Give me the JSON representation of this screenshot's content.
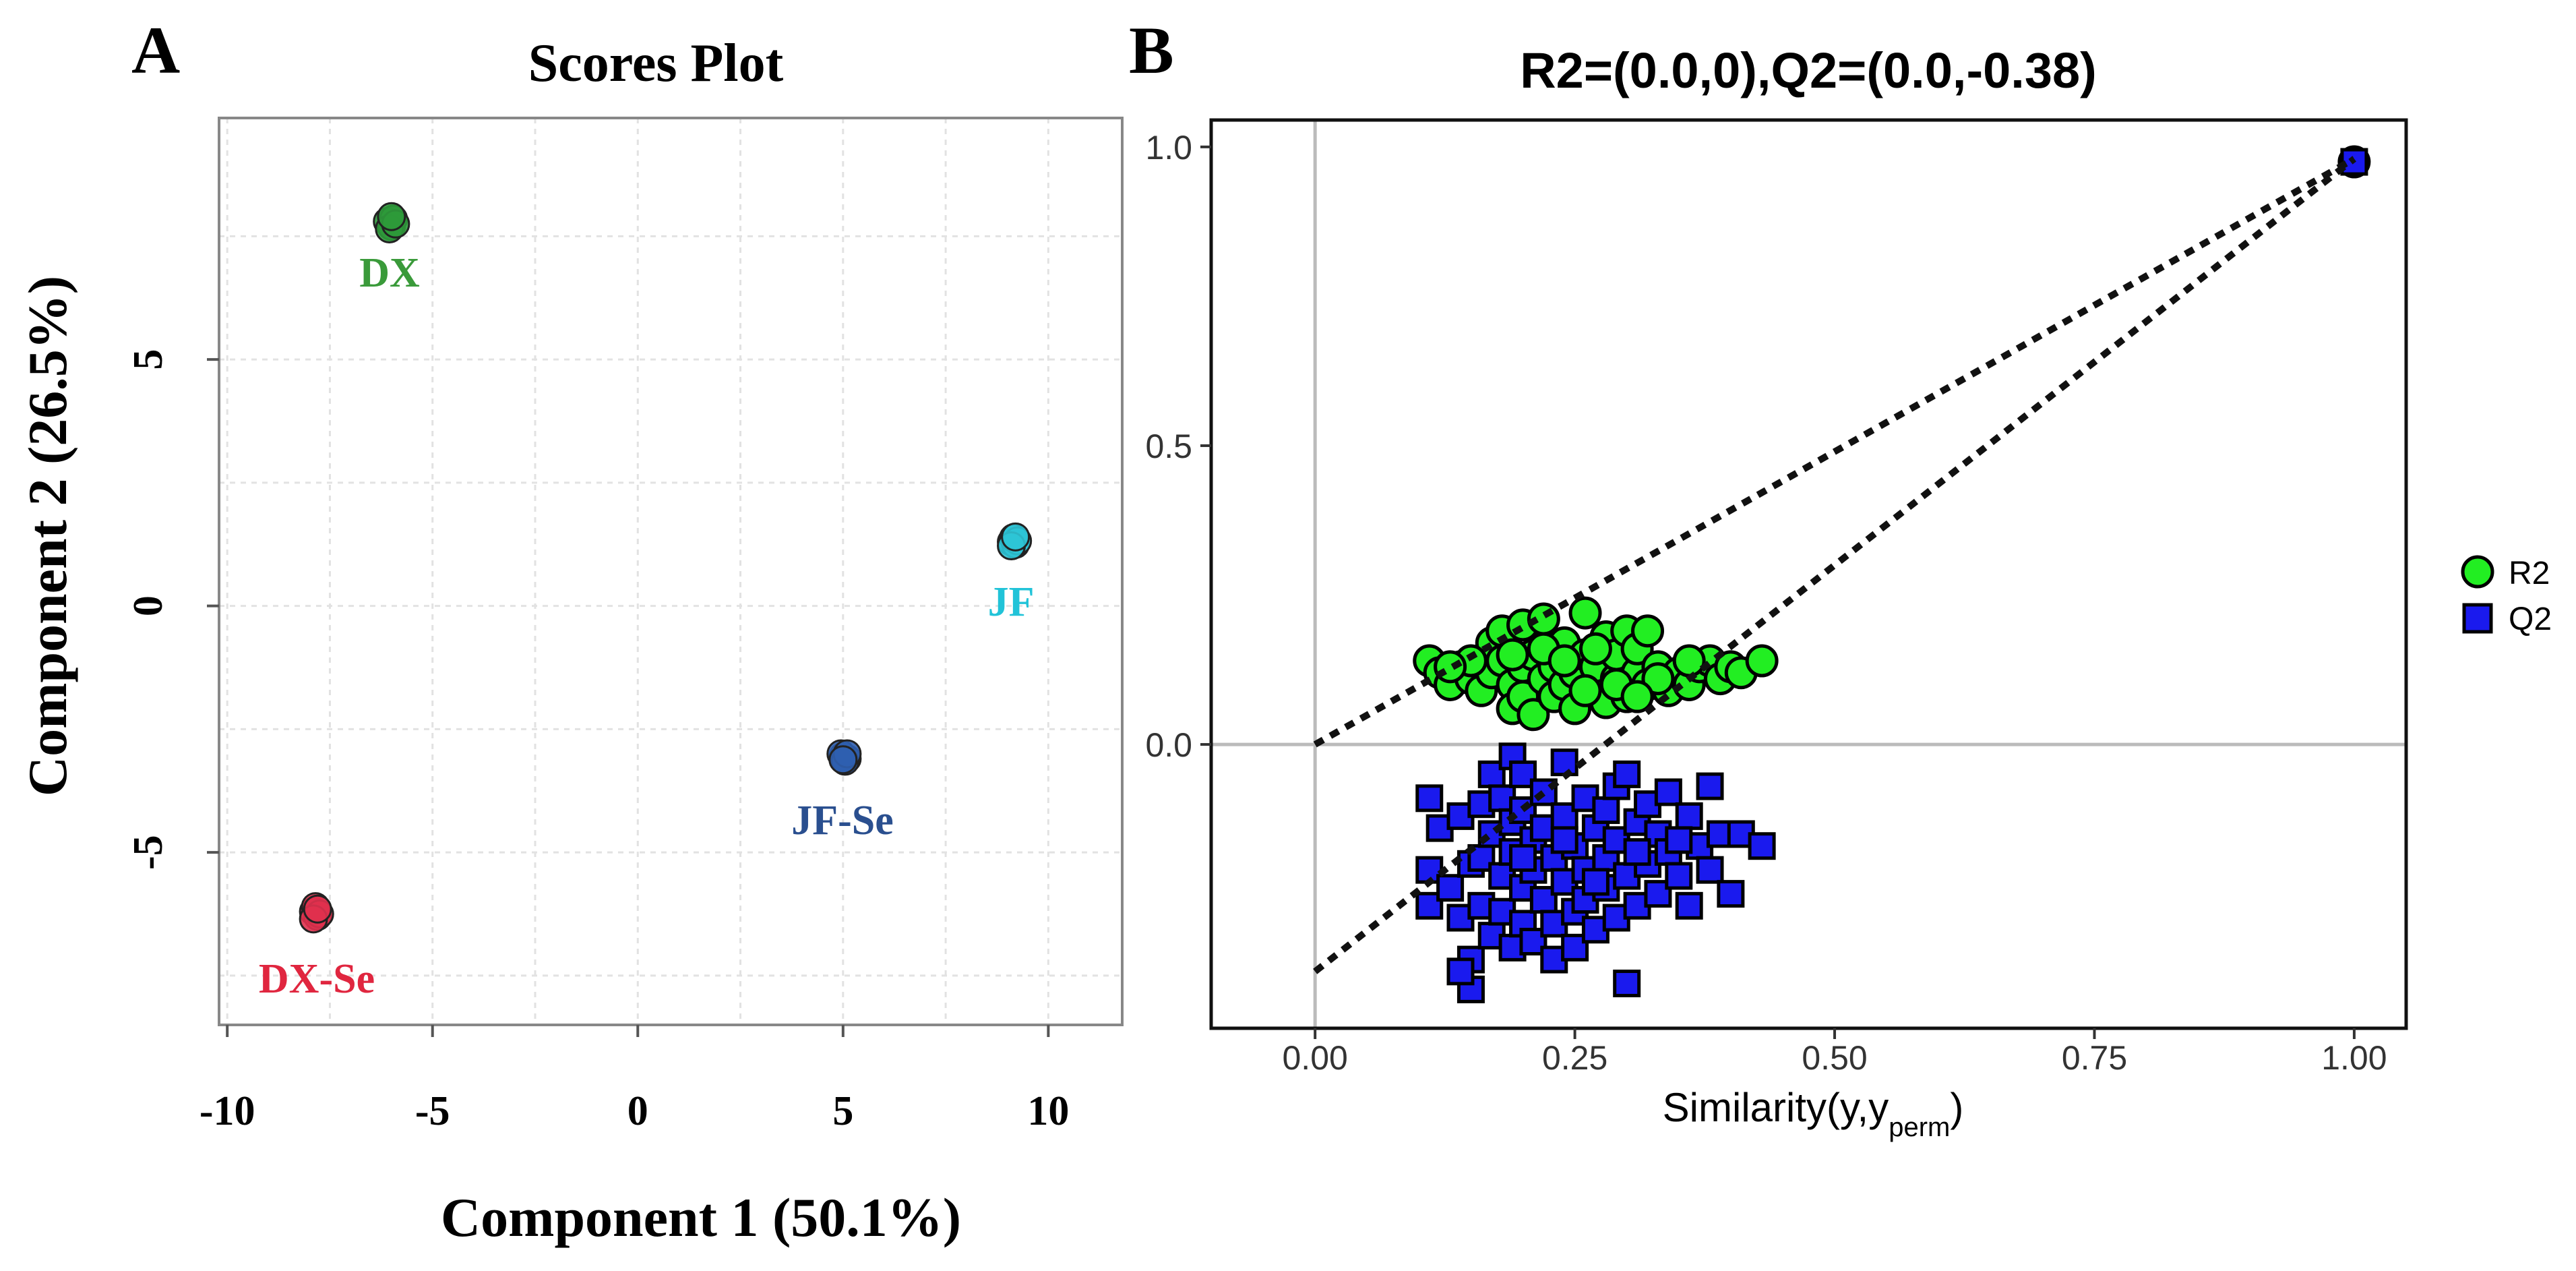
{
  "chart_data": [
    {
      "panel_label": "A",
      "type": "scatter",
      "title": "Scores Plot",
      "xlabel": "Component 1 (50.1%)",
      "ylabel": "Component 2 (26.5%)",
      "xlim": [
        -10.2,
        11.8
      ],
      "ylim": [
        -8.5,
        9.9
      ],
      "xticks": [
        -10,
        -5,
        0,
        5,
        10
      ],
      "xtick_labels": [
        "-10",
        "-5",
        "0",
        "5",
        "10"
      ],
      "yticks": [
        -5,
        0,
        5
      ],
      "ytick_labels": [
        "-5",
        "0",
        "5"
      ],
      "grid": true,
      "series": [
        {
          "name": "DX",
          "color": "#2e9a3a",
          "label_color": "#3a9a3a",
          "points": [
            [
              -6.1,
              7.8
            ],
            [
              -6.0,
              7.7
            ],
            [
              -5.95,
              7.85
            ],
            [
              -6.05,
              7.65
            ],
            [
              -5.9,
              7.75
            ],
            [
              -6.0,
              7.9
            ]
          ]
        },
        {
          "name": "JF",
          "color": "#2ec4d6",
          "label_color": "#21c3d8",
          "points": [
            [
              9.1,
              1.3
            ],
            [
              9.2,
              1.25
            ],
            [
              9.15,
              1.38
            ],
            [
              9.25,
              1.32
            ],
            [
              9.1,
              1.22
            ],
            [
              9.2,
              1.4
            ]
          ]
        },
        {
          "name": "JF-Se",
          "color": "#2f5fb0",
          "label_color": "#2a4f8f",
          "points": [
            [
              5.0,
              -3.05
            ],
            [
              5.1,
              -3.1
            ],
            [
              4.95,
              -3.0
            ],
            [
              5.05,
              -3.15
            ],
            [
              5.1,
              -3.0
            ],
            [
              5.0,
              -3.12
            ]
          ]
        },
        {
          "name": "DX-Se",
          "color": "#e0314e",
          "label_color": "#e0263f",
          "points": [
            [
              -7.9,
              -6.2
            ],
            [
              -7.8,
              -6.3
            ],
            [
              -7.85,
              -6.1
            ],
            [
              -7.75,
              -6.25
            ],
            [
              -7.9,
              -6.35
            ],
            [
              -7.8,
              -6.15
            ]
          ]
        }
      ],
      "annotations": [
        "DX",
        "JF",
        "JF-Se",
        "DX-Se"
      ]
    },
    {
      "panel_label": "B",
      "type": "scatter",
      "title": "R2=(0.0,0),Q2=(0.0,-0.38)",
      "xlabel": "Similarity(y,y",
      "xlabel_sub": "perm",
      "xlabel_close": ")",
      "ylabel": "",
      "xlim": [
        -0.1,
        1.05
      ],
      "ylim": [
        -0.475,
        1.045
      ],
      "xticks": [
        0,
        0.25,
        0.5,
        0.75,
        1.0
      ],
      "xtick_labels": [
        "0.00",
        "0.25",
        "0.50",
        "0.75",
        "1.00"
      ],
      "yticks": [
        0,
        0.5,
        1.0
      ],
      "ytick_labels": [
        "0.0",
        "0.5",
        "1.0"
      ],
      "grid": false,
      "reference_lines": {
        "x": 0,
        "y": 0
      },
      "legend_position": "right",
      "legend": [
        {
          "name": "R2",
          "shape": "circle",
          "color": "#22ee22"
        },
        {
          "name": "Q2",
          "shape": "square",
          "color": "#1a1aee"
        }
      ],
      "fit_lines": [
        {
          "name": "R2",
          "from": [
            0,
            0
          ],
          "to": [
            1.0,
            0.98
          ]
        },
        {
          "name": "Q2",
          "from": [
            0,
            -0.38
          ],
          "to": [
            1.0,
            0.98
          ]
        }
      ],
      "series": [
        {
          "name": "R2",
          "shape": "circle",
          "color": "#22ee22",
          "points": [
            [
              0.11,
              0.14
            ],
            [
              0.12,
              0.12
            ],
            [
              0.13,
              0.1
            ],
            [
              0.14,
              0.13
            ],
            [
              0.15,
              0.11
            ],
            [
              0.16,
              0.09
            ],
            [
              0.17,
              0.12
            ],
            [
              0.17,
              0.17
            ],
            [
              0.18,
              0.14
            ],
            [
              0.18,
              0.19
            ],
            [
              0.19,
              0.1
            ],
            [
              0.19,
              0.06
            ],
            [
              0.2,
              0.08
            ],
            [
              0.2,
              0.13
            ],
            [
              0.2,
              0.2
            ],
            [
              0.21,
              0.15
            ],
            [
              0.21,
              0.05
            ],
            [
              0.22,
              0.11
            ],
            [
              0.22,
              0.21
            ],
            [
              0.23,
              0.08
            ],
            [
              0.23,
              0.13
            ],
            [
              0.24,
              0.1
            ],
            [
              0.24,
              0.17
            ],
            [
              0.25,
              0.06
            ],
            [
              0.25,
              0.12
            ],
            [
              0.26,
              0.22
            ],
            [
              0.26,
              0.15
            ],
            [
              0.27,
              0.09
            ],
            [
              0.27,
              0.13
            ],
            [
              0.28,
              0.07
            ],
            [
              0.28,
              0.18
            ],
            [
              0.29,
              0.11
            ],
            [
              0.29,
              0.15
            ],
            [
              0.3,
              0.08
            ],
            [
              0.3,
              0.19
            ],
            [
              0.31,
              0.12
            ],
            [
              0.31,
              0.16
            ],
            [
              0.32,
              0.1
            ],
            [
              0.32,
              0.19
            ],
            [
              0.33,
              0.13
            ],
            [
              0.34,
              0.09
            ],
            [
              0.35,
              0.12
            ],
            [
              0.36,
              0.1
            ],
            [
              0.37,
              0.13
            ],
            [
              0.38,
              0.14
            ],
            [
              0.39,
              0.11
            ],
            [
              0.4,
              0.13
            ],
            [
              0.41,
              0.12
            ],
            [
              0.43,
              0.14
            ],
            [
              0.15,
              0.14
            ],
            [
              0.19,
              0.15
            ],
            [
              0.22,
              0.16
            ],
            [
              0.24,
              0.14
            ],
            [
              0.27,
              0.16
            ],
            [
              0.29,
              0.1
            ],
            [
              0.33,
              0.11
            ],
            [
              0.36,
              0.14
            ],
            [
              0.13,
              0.13
            ],
            [
              0.26,
              0.09
            ],
            [
              0.31,
              0.08
            ]
          ]
        },
        {
          "name": "Q2",
          "shape": "square",
          "color": "#1a1aee",
          "points": [
            [
              0.11,
              -0.09
            ],
            [
              0.11,
              -0.21
            ],
            [
              0.11,
              -0.27
            ],
            [
              0.12,
              -0.14
            ],
            [
              0.13,
              -0.24
            ],
            [
              0.14,
              -0.12
            ],
            [
              0.14,
              -0.29
            ],
            [
              0.15,
              -0.2
            ],
            [
              0.15,
              -0.36
            ],
            [
              0.15,
              -0.41
            ],
            [
              0.16,
              -0.1
            ],
            [
              0.16,
              -0.19
            ],
            [
              0.16,
              -0.27
            ],
            [
              0.17,
              -0.05
            ],
            [
              0.17,
              -0.15
            ],
            [
              0.17,
              -0.32
            ],
            [
              0.18,
              -0.09
            ],
            [
              0.18,
              -0.22
            ],
            [
              0.18,
              -0.28
            ],
            [
              0.19,
              -0.13
            ],
            [
              0.19,
              -0.18
            ],
            [
              0.19,
              -0.34
            ],
            [
              0.19,
              -0.02
            ],
            [
              0.2,
              -0.05
            ],
            [
              0.2,
              -0.11
            ],
            [
              0.2,
              -0.24
            ],
            [
              0.2,
              -0.3
            ],
            [
              0.21,
              -0.16
            ],
            [
              0.21,
              -0.21
            ],
            [
              0.21,
              -0.33
            ],
            [
              0.22,
              -0.08
            ],
            [
              0.22,
              -0.14
            ],
            [
              0.22,
              -0.26
            ],
            [
              0.23,
              -0.19
            ],
            [
              0.23,
              -0.3
            ],
            [
              0.23,
              -0.36
            ],
            [
              0.24,
              -0.03
            ],
            [
              0.24,
              -0.12
            ],
            [
              0.24,
              -0.23
            ],
            [
              0.25,
              -0.17
            ],
            [
              0.25,
              -0.28
            ],
            [
              0.25,
              -0.34
            ],
            [
              0.26,
              -0.09
            ],
            [
              0.26,
              -0.21
            ],
            [
              0.26,
              -0.26
            ],
            [
              0.27,
              -0.14
            ],
            [
              0.27,
              -0.31
            ],
            [
              0.28,
              -0.11
            ],
            [
              0.28,
              -0.19
            ],
            [
              0.28,
              -0.24
            ],
            [
              0.29,
              -0.07
            ],
            [
              0.29,
              -0.16
            ],
            [
              0.29,
              -0.29
            ],
            [
              0.3,
              -0.05
            ],
            [
              0.3,
              -0.22
            ],
            [
              0.3,
              -0.4
            ],
            [
              0.31,
              -0.13
            ],
            [
              0.31,
              -0.27
            ],
            [
              0.32,
              -0.1
            ],
            [
              0.32,
              -0.2
            ],
            [
              0.33,
              -0.15
            ],
            [
              0.33,
              -0.25
            ],
            [
              0.34,
              -0.08
            ],
            [
              0.34,
              -0.18
            ],
            [
              0.35,
              -0.22
            ],
            [
              0.36,
              -0.12
            ],
            [
              0.36,
              -0.27
            ],
            [
              0.37,
              -0.17
            ],
            [
              0.38,
              -0.07
            ],
            [
              0.38,
              -0.21
            ],
            [
              0.39,
              -0.15
            ],
            [
              0.4,
              -0.25
            ],
            [
              0.41,
              -0.15
            ],
            [
              0.43,
              -0.17
            ],
            [
              0.14,
              -0.38
            ],
            [
              0.2,
              -0.19
            ],
            [
              0.24,
              -0.16
            ],
            [
              0.27,
              -0.23
            ],
            [
              0.31,
              -0.18
            ],
            [
              0.35,
              -0.16
            ]
          ]
        }
      ]
    }
  ]
}
